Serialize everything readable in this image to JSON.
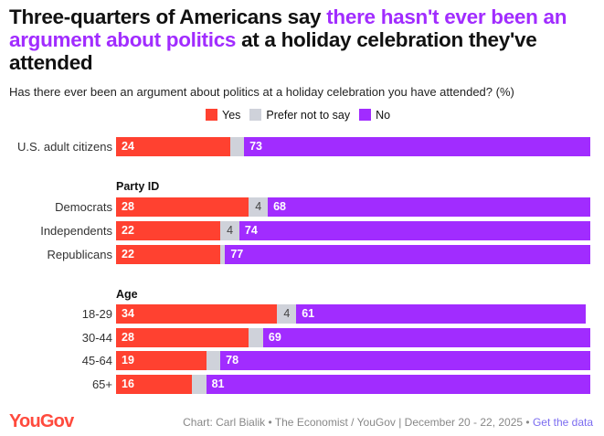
{
  "title": {
    "part1": "Three-quarters of Americans say ",
    "highlight": "there hasn't ever been an argument about politics",
    "part2": " at a holiday celebration they've attended"
  },
  "subtitle": "Has there ever been an argument about politics at a holiday celebration you have attended? (%)",
  "colors": {
    "yes": "#ff4130",
    "prefer": "#cfd2da",
    "no": "#a12cff"
  },
  "chart_data": {
    "type": "bar",
    "stacked": true,
    "orientation": "horizontal",
    "xlim": [
      0,
      100
    ],
    "legend": [
      "Yes",
      "Prefer not to say",
      "No"
    ],
    "groups": [
      {
        "header": "",
        "rows": [
          {
            "label": "U.S. adult citizens",
            "yes": 24,
            "prefer": 3,
            "no": 73,
            "show_prefer": false
          }
        ]
      },
      {
        "header": "Party ID",
        "rows": [
          {
            "label": "Democrats",
            "yes": 28,
            "prefer": 4,
            "no": 68,
            "show_prefer": true
          },
          {
            "label": "Independents",
            "yes": 22,
            "prefer": 4,
            "no": 74,
            "show_prefer": true
          },
          {
            "label": "Republicans",
            "yes": 22,
            "prefer": 1,
            "no": 77,
            "show_prefer": false
          }
        ]
      },
      {
        "header": "Age",
        "rows": [
          {
            "label": "18-29",
            "yes": 34,
            "prefer": 4,
            "no": 61,
            "show_prefer": true
          },
          {
            "label": "30-44",
            "yes": 28,
            "prefer": 3,
            "no": 69,
            "show_prefer": false
          },
          {
            "label": "45-64",
            "yes": 19,
            "prefer": 3,
            "no": 78,
            "show_prefer": false
          },
          {
            "label": "65+",
            "yes": 16,
            "prefer": 3,
            "no": 81,
            "show_prefer": false
          }
        ]
      }
    ]
  },
  "footer": {
    "logo": "YouGov",
    "credit": "Chart: Carl Bialik • The Economist / YouGov | December 20 - 22, 2025 • ",
    "link": "Get the data"
  }
}
